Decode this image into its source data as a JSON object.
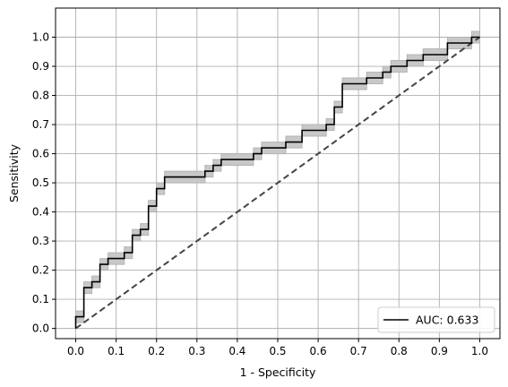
{
  "chart_data": {
    "type": "line",
    "title": "",
    "xlabel": "1 - Specificity",
    "ylabel": "Sensitivity",
    "xlim": [
      -0.05,
      1.05
    ],
    "ylim": [
      -0.035,
      1.1
    ],
    "xticks": [
      0.0,
      0.1,
      0.2,
      0.3,
      0.4,
      0.5,
      0.6,
      0.7,
      0.8,
      0.9,
      1.0
    ],
    "yticks": [
      0.0,
      0.1,
      0.2,
      0.3,
      0.4,
      0.5,
      0.6,
      0.7,
      0.8,
      0.9,
      1.0
    ],
    "xtick_labels": [
      "0.0",
      "0.1",
      "0.2",
      "0.3",
      "0.4",
      "0.5",
      "0.6",
      "0.7",
      "0.8",
      "0.9",
      "1.0"
    ],
    "ytick_labels": [
      "0.0",
      "0.1",
      "0.2",
      "0.3",
      "0.4",
      "0.5",
      "0.6",
      "0.7",
      "0.8",
      "0.9",
      "1.0"
    ],
    "grid": true,
    "legend_position": "bottom-right",
    "series": [
      {
        "name": "AUC: 0.633",
        "color": "#000000",
        "style": "step",
        "x": [
          0.0,
          0.0,
          0.02,
          0.02,
          0.04,
          0.04,
          0.06,
          0.06,
          0.08,
          0.08,
          0.12,
          0.12,
          0.14,
          0.14,
          0.16,
          0.16,
          0.18,
          0.18,
          0.2,
          0.2,
          0.22,
          0.22,
          0.32,
          0.32,
          0.34,
          0.34,
          0.36,
          0.36,
          0.44,
          0.44,
          0.46,
          0.46,
          0.52,
          0.52,
          0.56,
          0.56,
          0.62,
          0.62,
          0.64,
          0.64,
          0.66,
          0.66,
          0.72,
          0.72,
          0.76,
          0.76,
          0.78,
          0.78,
          0.82,
          0.82,
          0.86,
          0.86,
          0.92,
          0.92,
          0.98,
          0.98,
          1.0
        ],
        "y": [
          0.0,
          0.04,
          0.04,
          0.14,
          0.14,
          0.16,
          0.16,
          0.22,
          0.22,
          0.24,
          0.24,
          0.26,
          0.26,
          0.32,
          0.32,
          0.34,
          0.34,
          0.42,
          0.42,
          0.48,
          0.48,
          0.52,
          0.52,
          0.54,
          0.54,
          0.56,
          0.56,
          0.58,
          0.58,
          0.6,
          0.6,
          0.62,
          0.62,
          0.64,
          0.64,
          0.68,
          0.68,
          0.7,
          0.7,
          0.76,
          0.76,
          0.84,
          0.84,
          0.86,
          0.86,
          0.88,
          0.88,
          0.9,
          0.9,
          0.92,
          0.92,
          0.94,
          0.94,
          0.98,
          0.98,
          1.0,
          1.0
        ]
      }
    ],
    "confidence_band": {
      "color": "#c8c8c8",
      "edge_color": "#b4b4b4",
      "half_width": 0.02
    },
    "reference_line": {
      "style": "dashed",
      "color": "#444444",
      "x": [
        0.0,
        1.0
      ],
      "y": [
        0.0,
        1.0
      ]
    },
    "colors": {
      "grid": "#b0b0b0",
      "axes": "#000000"
    }
  }
}
